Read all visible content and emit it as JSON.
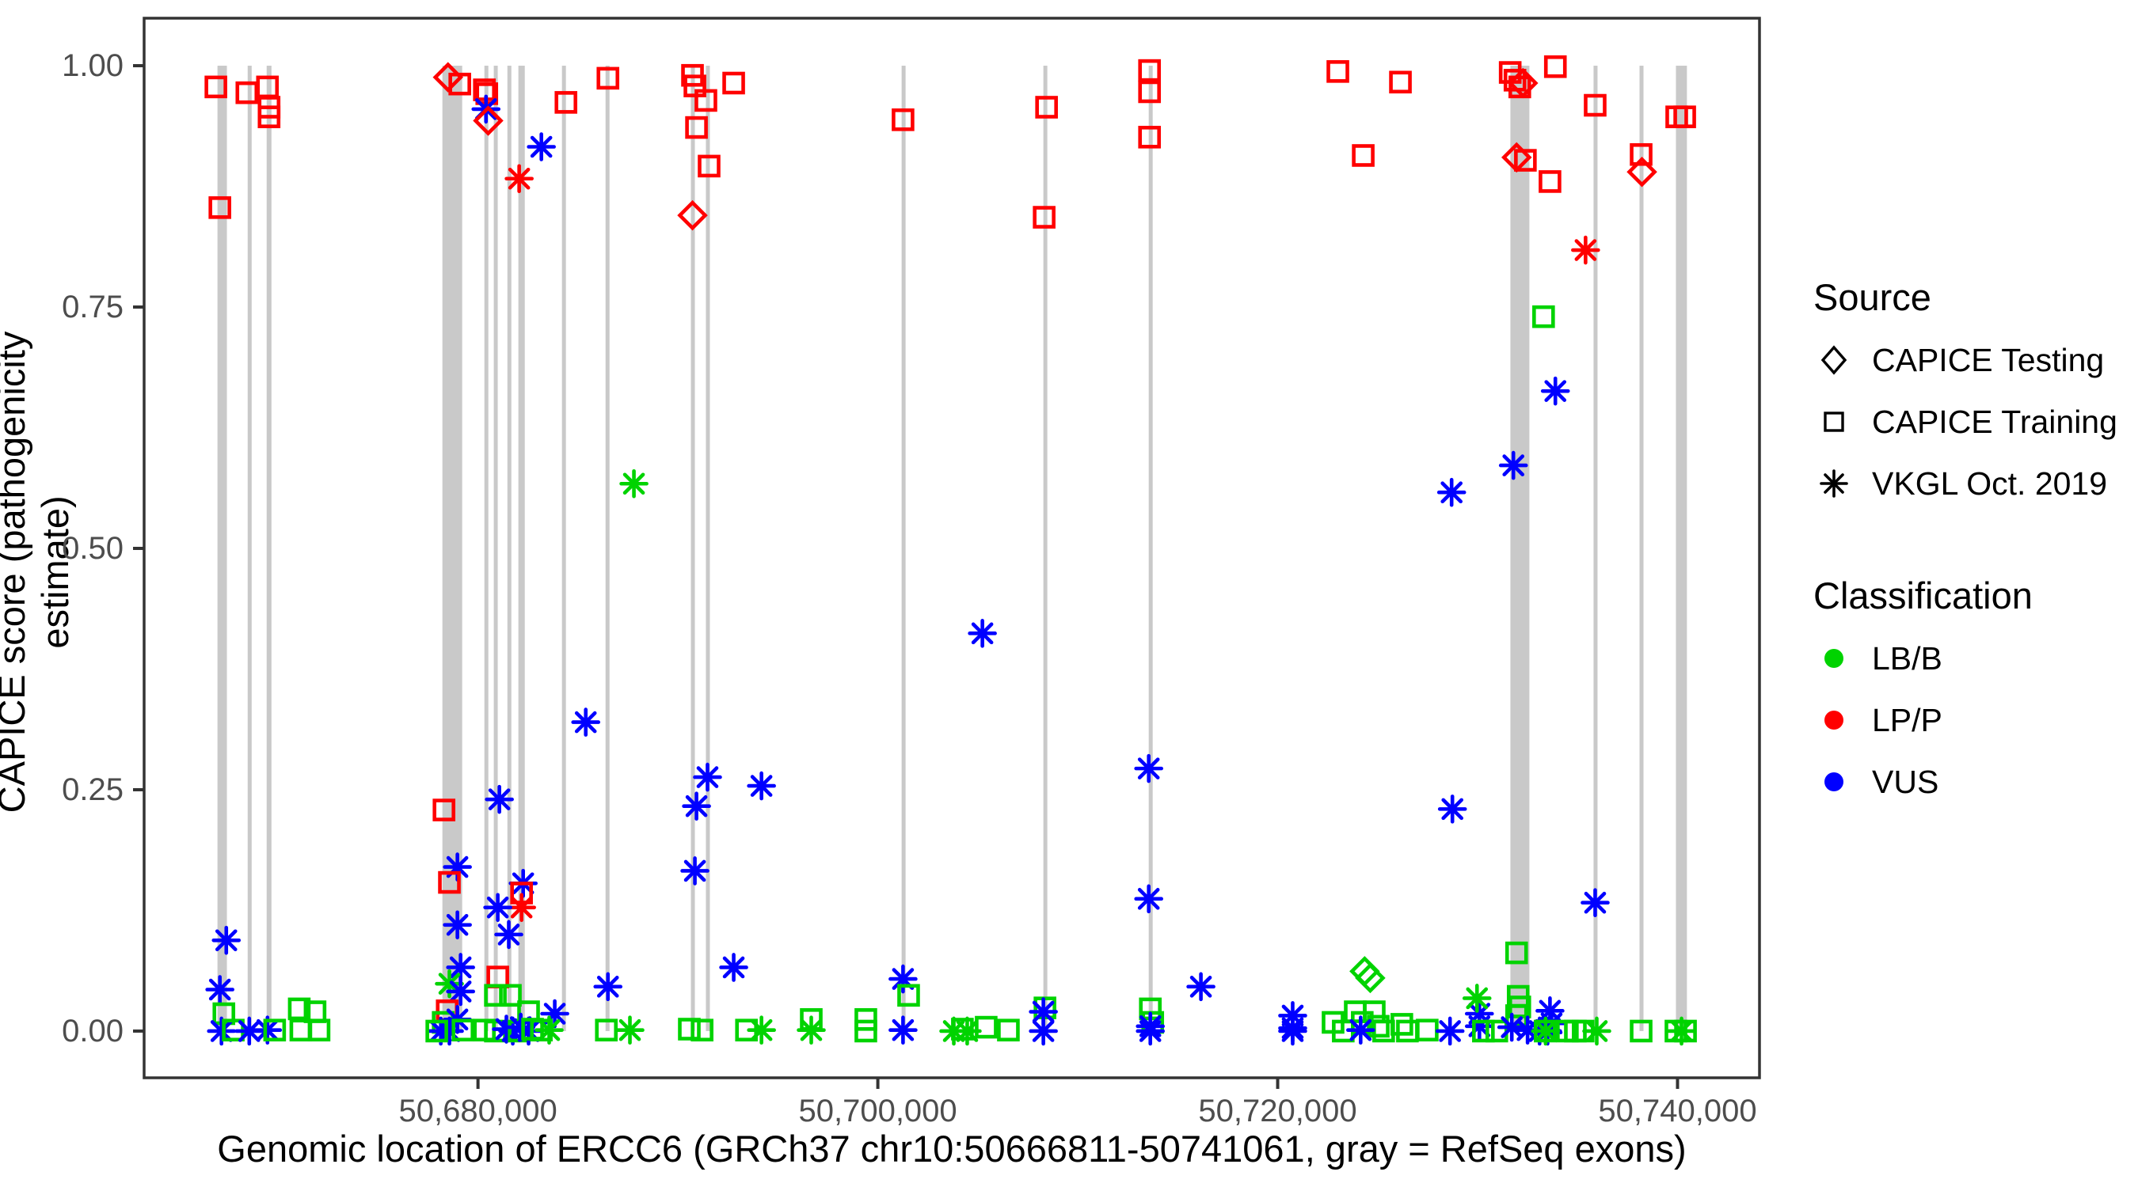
{
  "figure": {
    "x_axis_title": "Genomic location of ERCC6 (GRCh37 chr10:50666811-50741061, gray = RefSeq exons)",
    "y_axis_title": "CAPICE score (pathogenicity estimate)"
  },
  "legend": {
    "source": {
      "title": "Source",
      "items": [
        {
          "shape": "diamond",
          "label": "CAPICE Testing"
        },
        {
          "shape": "square",
          "label": "CAPICE Training"
        },
        {
          "shape": "asterisk",
          "label": "VKGL Oct. 2019"
        }
      ]
    },
    "classification": {
      "title": "Classification",
      "items": [
        {
          "label": "LB/B",
          "color": "#00d300"
        },
        {
          "label": "LP/P",
          "color": "#ff0000"
        },
        {
          "label": "VUS",
          "color": "#0000ff"
        }
      ]
    }
  },
  "colors": {
    "lbb_green": "#00d300",
    "lpp_red": "#ff0000",
    "vus_blue": "#0000ff",
    "exon_gray": "#c9c9c9",
    "panel_border": "#333333",
    "tick_text": "#4d4d4d",
    "legend_shape_black": "#000000"
  },
  "chart_data": {
    "type": "scatter",
    "title": "",
    "xlabel": "Genomic location of ERCC6 (GRCh37 chr10:50666811-50741061, gray = RefSeq exons)",
    "ylabel": "CAPICE score (pathogenicity estimate)",
    "grid": false,
    "legend_position": "right",
    "x_domain": [
      50663300,
      50744100
    ],
    "y_domain": [
      -0.0484,
      1.0492
    ],
    "x_ticks": [
      {
        "bp": 50680000,
        "label": "50,680,000"
      },
      {
        "bp": 50700000,
        "label": "50,700,000"
      },
      {
        "bp": 50720000,
        "label": "50,720,000"
      },
      {
        "bp": 50740000,
        "label": "50,740,000"
      }
    ],
    "y_ticks": [
      {
        "v": 0.0,
        "label": "0.00"
      },
      {
        "v": 0.25,
        "label": "0.25"
      },
      {
        "v": 0.5,
        "label": "0.50"
      },
      {
        "v": 0.75,
        "label": "0.75"
      },
      {
        "v": 1.0,
        "label": "1.00"
      }
    ],
    "shape_codes": {
      "sq": "CAPICE Training (open square)",
      "di": "CAPICE Testing (open diamond)",
      "as": "VKGL Oct. 2019 (asterisk)"
    },
    "class_codes": {
      "g": "LB/B",
      "r": "LP/P",
      "b": "VUS"
    },
    "refseq_exons_bp": [
      [
        50666970,
        50667440
      ],
      [
        50668480,
        50668680
      ],
      [
        50669430,
        50669670
      ],
      [
        50678220,
        50679210
      ],
      [
        50680320,
        50680480
      ],
      [
        50680790,
        50680950
      ],
      [
        50681470,
        50681630
      ],
      [
        50682020,
        50682340
      ],
      [
        50684200,
        50684360
      ],
      [
        50686380,
        50686580
      ],
      [
        50690650,
        50690810
      ],
      [
        50691400,
        50691560
      ],
      [
        50701190,
        50701350
      ],
      [
        50708280,
        50708440
      ],
      [
        50713550,
        50713710
      ],
      [
        50731640,
        50732590
      ],
      [
        50735800,
        50735960
      ],
      [
        50738100,
        50738260
      ],
      [
        50739920,
        50740470
      ]
    ],
    "points": [
      [
        50666890,
        0.978,
        "sq",
        "r"
      ],
      [
        50668440,
        0.972,
        "sq",
        "r"
      ],
      [
        50669470,
        0.978,
        "sq",
        "r"
      ],
      [
        50669550,
        0.957,
        "sq",
        "r"
      ],
      [
        50669550,
        0.947,
        "sq",
        "r"
      ],
      [
        50667090,
        0.853,
        "sq",
        "r"
      ],
      [
        50667410,
        0.094,
        "as",
        "b"
      ],
      [
        50667090,
        0.043,
        "as",
        "b"
      ],
      [
        50667290,
        0.018,
        "sq",
        "g"
      ],
      [
        50667170,
        0.0,
        "as",
        "b"
      ],
      [
        50667760,
        0.001,
        "sq",
        "g"
      ],
      [
        50668560,
        0.0,
        "as",
        "b"
      ],
      [
        50669470,
        0.001,
        "as",
        "b"
      ],
      [
        50669830,
        0.001,
        "sq",
        "g"
      ],
      [
        50671060,
        0.023,
        "sq",
        "g"
      ],
      [
        50671850,
        0.02,
        "sq",
        "g"
      ],
      [
        50671140,
        0.001,
        "sq",
        "g"
      ],
      [
        50672050,
        0.001,
        "sq",
        "g"
      ],
      [
        50678500,
        0.988,
        "di",
        "r"
      ],
      [
        50679090,
        0.981,
        "sq",
        "r"
      ],
      [
        50678300,
        0.229,
        "sq",
        "r"
      ],
      [
        50678970,
        0.17,
        "as",
        "b"
      ],
      [
        50678570,
        0.154,
        "sq",
        "r"
      ],
      [
        50678970,
        0.11,
        "as",
        "b"
      ],
      [
        50679130,
        0.066,
        "as",
        "b"
      ],
      [
        50678570,
        0.049,
        "as",
        "g"
      ],
      [
        50679130,
        0.041,
        "as",
        "b"
      ],
      [
        50678460,
        0.021,
        "sq",
        "r"
      ],
      [
        50678260,
        0.009,
        "sq",
        "g"
      ],
      [
        50678970,
        0.012,
        "as",
        "b"
      ],
      [
        50678140,
        0.0,
        "as",
        "b"
      ],
      [
        50678570,
        0.0,
        "as",
        "b"
      ],
      [
        50679250,
        0.001,
        "sq",
        "g"
      ],
      [
        50677940,
        0.0,
        "sq",
        "g"
      ],
      [
        50680320,
        0.975,
        "sq",
        "r"
      ],
      [
        50680440,
        0.971,
        "sq",
        "r"
      ],
      [
        50680400,
        0.955,
        "as",
        "b"
      ],
      [
        50680510,
        0.943,
        "di",
        "r"
      ],
      [
        50683170,
        0.916,
        "as",
        "b"
      ],
      [
        50682060,
        0.883,
        "as",
        "r"
      ],
      [
        50681070,
        0.24,
        "as",
        "b"
      ],
      [
        50682260,
        0.153,
        "as",
        "b"
      ],
      [
        50682180,
        0.143,
        "sq",
        "r"
      ],
      [
        50682180,
        0.128,
        "as",
        "r"
      ],
      [
        50680990,
        0.128,
        "as",
        "b"
      ],
      [
        50681540,
        0.1,
        "as",
        "b"
      ],
      [
        50680990,
        0.056,
        "sq",
        "r"
      ],
      [
        50680870,
        0.037,
        "sq",
        "g"
      ],
      [
        50681620,
        0.037,
        "sq",
        "g"
      ],
      [
        50682530,
        0.02,
        "sq",
        "g"
      ],
      [
        50683840,
        0.018,
        "as",
        "b"
      ],
      [
        50680320,
        0.001,
        "sq",
        "g"
      ],
      [
        50680870,
        0.0,
        "sq",
        "g"
      ],
      [
        50681420,
        0.002,
        "as",
        "b"
      ],
      [
        50681740,
        0.0,
        "as",
        "b"
      ],
      [
        50682060,
        0.0,
        "sq",
        "g"
      ],
      [
        50682140,
        0.004,
        "as",
        "b"
      ],
      [
        50682530,
        0.0,
        "as",
        "b"
      ],
      [
        50682730,
        0.002,
        "sq",
        "g"
      ],
      [
        50683170,
        0.001,
        "sq",
        "g"
      ],
      [
        50683560,
        0.001,
        "as",
        "g"
      ],
      [
        50684400,
        0.962,
        "sq",
        "r"
      ],
      [
        50686500,
        0.987,
        "sq",
        "r"
      ],
      [
        50685390,
        0.32,
        "as",
        "b"
      ],
      [
        50687800,
        0.567,
        "as",
        "g"
      ],
      [
        50690730,
        0.99,
        "sq",
        "r"
      ],
      [
        50690850,
        0.979,
        "sq",
        "r"
      ],
      [
        50691400,
        0.964,
        "sq",
        "r"
      ],
      [
        50690930,
        0.936,
        "sq",
        "r"
      ],
      [
        50691560,
        0.896,
        "sq",
        "r"
      ],
      [
        50690730,
        0.845,
        "di",
        "r"
      ],
      [
        50692790,
        0.982,
        "sq",
        "r"
      ],
      [
        50691480,
        0.263,
        "as",
        "b"
      ],
      [
        50690930,
        0.233,
        "as",
        "b"
      ],
      [
        50694180,
        0.254,
        "as",
        "b"
      ],
      [
        50690850,
        0.166,
        "as",
        "b"
      ],
      [
        50692790,
        0.066,
        "as",
        "b"
      ],
      [
        50686500,
        0.046,
        "as",
        "b"
      ],
      [
        50686420,
        0.001,
        "sq",
        "g"
      ],
      [
        50687600,
        0.001,
        "as",
        "g"
      ],
      [
        50690570,
        0.002,
        "sq",
        "g"
      ],
      [
        50691210,
        0.001,
        "sq",
        "g"
      ],
      [
        50693430,
        0.001,
        "sq",
        "g"
      ],
      [
        50694180,
        0.001,
        "as",
        "g"
      ],
      [
        50696670,
        0.012,
        "sq",
        "g"
      ],
      [
        50696670,
        0.001,
        "as",
        "g"
      ],
      [
        50699400,
        0.012,
        "sq",
        "g"
      ],
      [
        50699400,
        0.0,
        "sq",
        "g"
      ],
      [
        50701260,
        0.944,
        "sq",
        "r"
      ],
      [
        50701260,
        0.054,
        "as",
        "b"
      ],
      [
        50701540,
        0.037,
        "sq",
        "g"
      ],
      [
        50701260,
        0.001,
        "as",
        "b"
      ],
      [
        50703800,
        0.0,
        "as",
        "g"
      ],
      [
        50704230,
        0.002,
        "sq",
        "g"
      ],
      [
        50704470,
        0.0,
        "as",
        "g"
      ],
      [
        50705420,
        0.004,
        "sq",
        "g"
      ],
      [
        50706530,
        0.001,
        "sq",
        "g"
      ],
      [
        50705230,
        0.412,
        "as",
        "b"
      ],
      [
        50708440,
        0.957,
        "sq",
        "r"
      ],
      [
        50708320,
        0.843,
        "sq",
        "r"
      ],
      [
        50708360,
        0.024,
        "sq",
        "g"
      ],
      [
        50708280,
        0.02,
        "as",
        "b"
      ],
      [
        50708280,
        0.0,
        "as",
        "b"
      ],
      [
        50713590,
        0.995,
        "sq",
        "r"
      ],
      [
        50713590,
        0.973,
        "sq",
        "r"
      ],
      [
        50713590,
        0.926,
        "sq",
        "r"
      ],
      [
        50713550,
        0.272,
        "as",
        "b"
      ],
      [
        50713550,
        0.137,
        "as",
        "b"
      ],
      [
        50713630,
        0.023,
        "sq",
        "g"
      ],
      [
        50713750,
        0.009,
        "sq",
        "g"
      ],
      [
        50713630,
        0.005,
        "as",
        "b"
      ],
      [
        50713630,
        0.0,
        "as",
        "b"
      ],
      [
        50716160,
        0.046,
        "as",
        "b"
      ],
      [
        50723010,
        0.994,
        "sq",
        "r"
      ],
      [
        50724280,
        0.907,
        "sq",
        "r"
      ],
      [
        50726140,
        0.983,
        "sq",
        "r"
      ],
      [
        50720750,
        0.016,
        "as",
        "b"
      ],
      [
        50720750,
        0.003,
        "as",
        "b"
      ],
      [
        50720750,
        0.0,
        "as",
        "b"
      ],
      [
        50722770,
        0.009,
        "sq",
        "g"
      ],
      [
        50723280,
        0.0,
        "sq",
        "g"
      ],
      [
        50723880,
        0.02,
        "sq",
        "g"
      ],
      [
        50724830,
        0.02,
        "sq",
        "g"
      ],
      [
        50724230,
        0.009,
        "sq",
        "g"
      ],
      [
        50725030,
        0.005,
        "sq",
        "g"
      ],
      [
        50725300,
        0.0,
        "sq",
        "g"
      ],
      [
        50726210,
        0.007,
        "sq",
        "g"
      ],
      [
        50726490,
        0.0,
        "sq",
        "g"
      ],
      [
        50727480,
        0.001,
        "sq",
        "g"
      ],
      [
        50724150,
        0.001,
        "as",
        "b"
      ],
      [
        50724350,
        0.062,
        "di",
        "g"
      ],
      [
        50724630,
        0.055,
        "di",
        "g"
      ],
      [
        50728740,
        0.23,
        "as",
        "b"
      ],
      [
        50728700,
        0.558,
        "as",
        "b"
      ],
      [
        50728620,
        0.0,
        "as",
        "b"
      ],
      [
        50730090,
        0.018,
        "as",
        "b"
      ],
      [
        50730090,
        0.005,
        "as",
        "b"
      ],
      [
        50729970,
        0.034,
        "as",
        "g"
      ],
      [
        50730290,
        0.0,
        "sq",
        "g"
      ],
      [
        50730960,
        0.0,
        "sq",
        "g"
      ],
      [
        50731630,
        0.993,
        "sq",
        "r"
      ],
      [
        50731870,
        0.985,
        "sq",
        "r"
      ],
      [
        50732110,
        0.978,
        "sq",
        "r"
      ],
      [
        50732270,
        0.982,
        "di",
        "r"
      ],
      [
        50731950,
        0.905,
        "di",
        "r"
      ],
      [
        50732390,
        0.902,
        "sq",
        "r"
      ],
      [
        50733620,
        0.88,
        "sq",
        "r"
      ],
      [
        50733890,
        0.999,
        "sq",
        "r"
      ],
      [
        50733300,
        0.74,
        "sq",
        "g"
      ],
      [
        50733890,
        0.663,
        "as",
        "b"
      ],
      [
        50731790,
        0.586,
        "as",
        "b"
      ],
      [
        50731950,
        0.081,
        "sq",
        "g"
      ],
      [
        50732030,
        0.036,
        "sq",
        "g"
      ],
      [
        50732110,
        0.025,
        "sq",
        "g"
      ],
      [
        50731950,
        0.016,
        "sq",
        "g"
      ],
      [
        50733620,
        0.021,
        "as",
        "b"
      ],
      [
        50733700,
        0.008,
        "as",
        "b"
      ],
      [
        50733500,
        0.0,
        "as",
        "b"
      ],
      [
        50731710,
        0.004,
        "as",
        "b"
      ],
      [
        50732500,
        0.001,
        "as",
        "b"
      ],
      [
        50733100,
        0.0,
        "as",
        "b"
      ],
      [
        50733380,
        0.0,
        "sq",
        "g"
      ],
      [
        50733400,
        0.0,
        "as",
        "g"
      ],
      [
        50734490,
        0.0,
        "sq",
        "g"
      ],
      [
        50734890,
        0.0,
        "sq",
        "g"
      ],
      [
        50735280,
        0.0,
        "sq",
        "g"
      ],
      [
        50735960,
        0.0,
        "as",
        "g"
      ],
      [
        50735880,
        0.133,
        "as",
        "b"
      ],
      [
        50735400,
        0.809,
        "as",
        "r"
      ],
      [
        50735880,
        0.959,
        "sq",
        "r"
      ],
      [
        50738180,
        0.908,
        "sq",
        "r"
      ],
      [
        50738220,
        0.89,
        "di",
        "r"
      ],
      [
        50738180,
        0.0,
        "sq",
        "g"
      ],
      [
        50739960,
        0.947,
        "sq",
        "r"
      ],
      [
        50740360,
        0.947,
        "sq",
        "r"
      ],
      [
        50739920,
        0.0,
        "sq",
        "g"
      ],
      [
        50740200,
        0.0,
        "as",
        "g"
      ],
      [
        50740400,
        0.0,
        "sq",
        "g"
      ]
    ]
  }
}
